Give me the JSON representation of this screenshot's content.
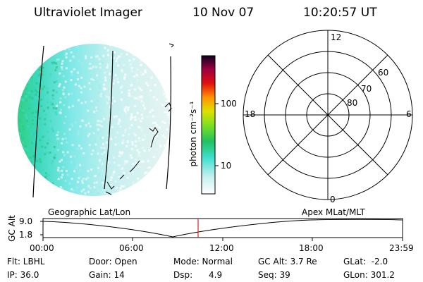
{
  "header": {
    "instrument": "Ultraviolet Imager",
    "date": "10 Nov 07",
    "time": "10:20:57 UT"
  },
  "colorbar": {
    "unit_label": "photon cm⁻²s⁻¹",
    "tick_labels": [
      "100",
      "10"
    ],
    "scale": "log"
  },
  "polar_plot": {
    "mlt_labels": {
      "top": "12",
      "left": "18",
      "right": "6",
      "bottom": "0"
    },
    "lat_labels": [
      "60",
      "70",
      "80"
    ]
  },
  "timeline": {
    "left_title": "Geographic Lat/Lon",
    "right_title": "Apex MLat/MLT",
    "y_label": "GC Alt",
    "y_ticks": [
      "9.0",
      "1.8"
    ],
    "x_ticks": [
      "00:00",
      "06:00",
      "12:00",
      "18:00",
      "23:59"
    ],
    "current_time_marker_color": "#e02020"
  },
  "info": {
    "row1": {
      "flt": "Flt: LBHL",
      "door": "Door: Open",
      "mode": "Mode: Normal",
      "gc_alt": "GC Alt: 3.7 Re",
      "glat": "GLat:  -2.0"
    },
    "row2": {
      "ip": "IP: 36.0",
      "gain": "Gain: 14",
      "dsp": "Dsp:      4.9",
      "seq": "Seq: 39",
      "glon": "GLon: 301.2"
    }
  },
  "colors": {
    "colorbar_stops": [
      "#ffffff",
      "#c8f0f0",
      "#40e0d0",
      "#20c060",
      "#80e020",
      "#e0e000",
      "#ff9000",
      "#e01010",
      "#a00040",
      "#100020"
    ]
  }
}
